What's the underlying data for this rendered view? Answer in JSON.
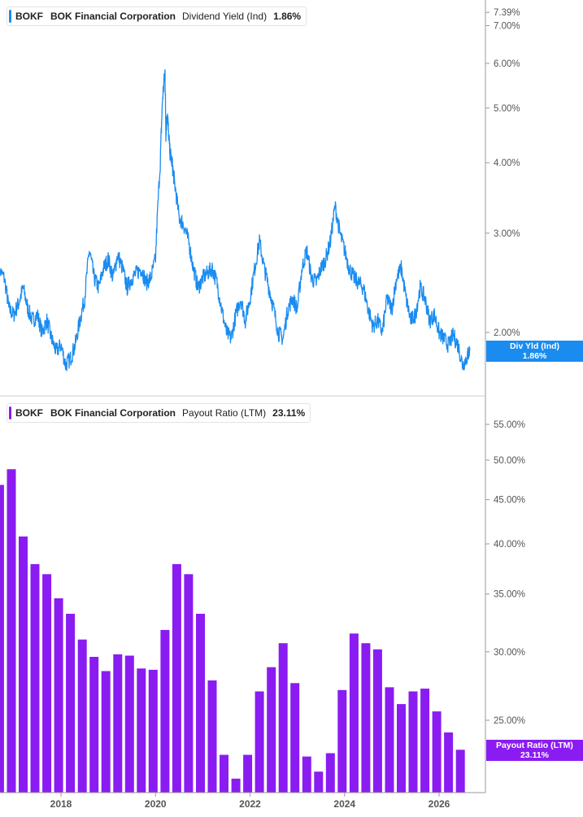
{
  "panels": [
    {
      "ticker": "BOKF",
      "company": "BOK Financial Corporation",
      "metric": "Dividend Yield (Ind)",
      "value": "1.86%",
      "tag_line1": "Div Yld (Ind)",
      "tag_line2": "1.86%",
      "color": "#1a8cf0"
    },
    {
      "ticker": "BOKF",
      "company": "BOK Financial Corporation",
      "metric": "Payout Ratio (LTM)",
      "value": "23.11%",
      "tag_line1": "Payout Ratio (LTM)",
      "tag_line2": "23.11%",
      "color": "#8a1cf2"
    }
  ],
  "chart_data": [
    {
      "type": "line",
      "yscale": "log",
      "series": [
        {
          "name": "Dividend Yield (Ind)"
        }
      ],
      "x": [
        2016.65,
        2016.8,
        2016.9,
        2017.0,
        2017.1,
        2017.2,
        2017.3,
        2017.4,
        2017.5,
        2017.6,
        2017.7,
        2017.8,
        2017.9,
        2018.0,
        2018.1,
        2018.2,
        2018.3,
        2018.4,
        2018.5,
        2018.6,
        2018.7,
        2018.8,
        2018.9,
        2019.0,
        2019.1,
        2019.2,
        2019.3,
        2019.4,
        2019.5,
        2019.6,
        2019.7,
        2019.8,
        2019.9,
        2020.0,
        2020.1,
        2020.15,
        2020.2,
        2020.22,
        2020.25,
        2020.3,
        2020.35,
        2020.4,
        2020.5,
        2020.6,
        2020.7,
        2020.8,
        2020.9,
        2021.0,
        2021.1,
        2021.2,
        2021.3,
        2021.4,
        2021.5,
        2021.6,
        2021.7,
        2021.8,
        2021.9,
        2022.0,
        2022.1,
        2022.2,
        2022.3,
        2022.4,
        2022.5,
        2022.6,
        2022.7,
        2022.8,
        2022.9,
        2023.0,
        2023.1,
        2023.2,
        2023.3,
        2023.4,
        2023.5,
        2023.6,
        2023.7,
        2023.8,
        2023.9,
        2024.0,
        2024.1,
        2024.2,
        2024.3,
        2024.4,
        2024.5,
        2024.6,
        2024.7,
        2024.8,
        2024.9,
        2025.0,
        2025.1,
        2025.2,
        2025.3,
        2025.4,
        2025.5,
        2025.6,
        2025.7,
        2025.8,
        2025.9,
        2026.0,
        2026.1,
        2026.2,
        2026.3,
        2026.4,
        2026.5,
        2026.6,
        2026.65
      ],
      "y": [
        2.6,
        2.5,
        2.2,
        2.15,
        2.25,
        2.4,
        2.2,
        2.1,
        2.15,
        2.0,
        2.1,
        1.95,
        1.85,
        1.9,
        1.75,
        1.8,
        1.9,
        2.1,
        2.3,
        2.8,
        2.5,
        2.4,
        2.6,
        2.7,
        2.5,
        2.75,
        2.6,
        2.4,
        2.5,
        2.55,
        2.6,
        2.45,
        2.5,
        2.7,
        4.0,
        5.2,
        5.8,
        4.5,
        4.9,
        4.2,
        4.0,
        3.7,
        3.2,
        3.1,
        2.9,
        2.6,
        2.4,
        2.5,
        2.55,
        2.6,
        2.45,
        2.2,
        2.0,
        1.95,
        2.15,
        2.3,
        2.1,
        2.3,
        2.6,
        2.9,
        2.6,
        2.4,
        2.2,
        2.0,
        1.95,
        2.2,
        2.3,
        2.2,
        2.6,
        2.8,
        2.5,
        2.45,
        2.6,
        2.7,
        2.9,
        3.35,
        3.0,
        2.8,
        2.6,
        2.5,
        2.45,
        2.4,
        2.2,
        2.05,
        2.1,
        2.0,
        2.3,
        2.2,
        2.5,
        2.6,
        2.3,
        2.1,
        2.15,
        2.4,
        2.3,
        2.1,
        2.15,
        2.0,
        1.95,
        1.9,
        1.98,
        1.9,
        1.75,
        1.82,
        1.86
      ],
      "yticks": [
        "7.39%",
        "7.00%",
        "6.00%",
        "5.00%",
        "4.00%",
        "3.00%",
        "2.00%"
      ],
      "last_value": 1.86
    },
    {
      "type": "bar",
      "yscale": "log",
      "series": [
        {
          "name": "Payout Ratio (LTM)"
        }
      ],
      "x": [
        2016.7,
        2016.95,
        2017.2,
        2017.45,
        2017.7,
        2017.95,
        2018.2,
        2018.45,
        2018.7,
        2018.95,
        2019.2,
        2019.45,
        2019.7,
        2019.95,
        2020.2,
        2020.45,
        2020.7,
        2020.95,
        2021.2,
        2021.45,
        2021.7,
        2021.95,
        2022.2,
        2022.45,
        2022.7,
        2022.95,
        2023.2,
        2023.45,
        2023.7,
        2023.95,
        2024.2,
        2024.45,
        2024.7,
        2024.95,
        2025.2,
        2025.45,
        2025.7,
        2025.95,
        2026.2,
        2026.45
      ],
      "values": [
        46.8,
        48.8,
        40.8,
        37.9,
        36.9,
        34.6,
        33.2,
        31.0,
        29.6,
        28.5,
        29.8,
        29.7,
        28.7,
        28.6,
        31.8,
        37.9,
        36.9,
        33.2,
        27.8,
        22.8,
        21.4,
        22.8,
        27.0,
        28.8,
        30.7,
        27.6,
        22.7,
        21.8,
        22.9,
        27.1,
        31.5,
        30.7,
        30.2,
        27.3,
        26.1,
        27.0,
        27.2,
        25.6,
        24.2,
        23.11
      ],
      "yticks": [
        "55.00%",
        "50.00%",
        "45.00%",
        "40.00%",
        "35.00%",
        "30.00%",
        "25.00%"
      ],
      "last_value": 23.11
    }
  ],
  "x_axis": {
    "ticks": [
      "2018",
      "2020",
      "2022",
      "2024",
      "2026"
    ]
  }
}
